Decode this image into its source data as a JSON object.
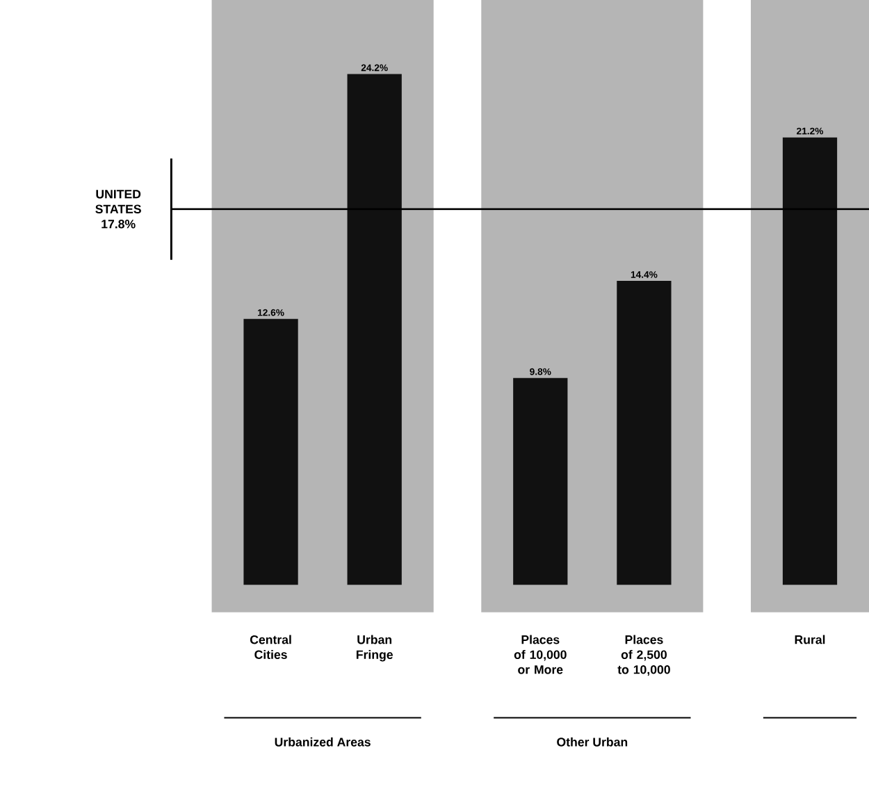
{
  "chart_data": {
    "type": "bar",
    "categories": [
      "Central Cities",
      "Urban Fringe",
      "Places of 10,000 or More",
      "Places of 2,500 to 10,000",
      "Rural"
    ],
    "values": [
      12.6,
      24.2,
      9.8,
      14.4,
      21.2
    ],
    "color": "#111111",
    "value_labels": [
      "12.6%",
      "24.2%",
      "9.8%",
      "14.4%",
      "21.2%"
    ],
    "ref_lines": [
      {
        "axis": "y",
        "value": 17.8,
        "label": "UNITED STATES 17.8%",
        "color": "#000000"
      }
    ],
    "bands": [
      {
        "axis": "x",
        "from": "Central Cities",
        "to": "Urban Fringe",
        "color": "#b5b5b5"
      },
      {
        "axis": "x",
        "from": "Places of 10,000 or More",
        "to": "Places of 2,500 to 10,000",
        "color": "#b5b5b5"
      },
      {
        "axis": "x",
        "from": "Rural",
        "to": "Rural",
        "color": "#b5b5b5"
      }
    ],
    "annotations": [
      "Urbanized Areas",
      "Other Urban"
    ]
  }
}
